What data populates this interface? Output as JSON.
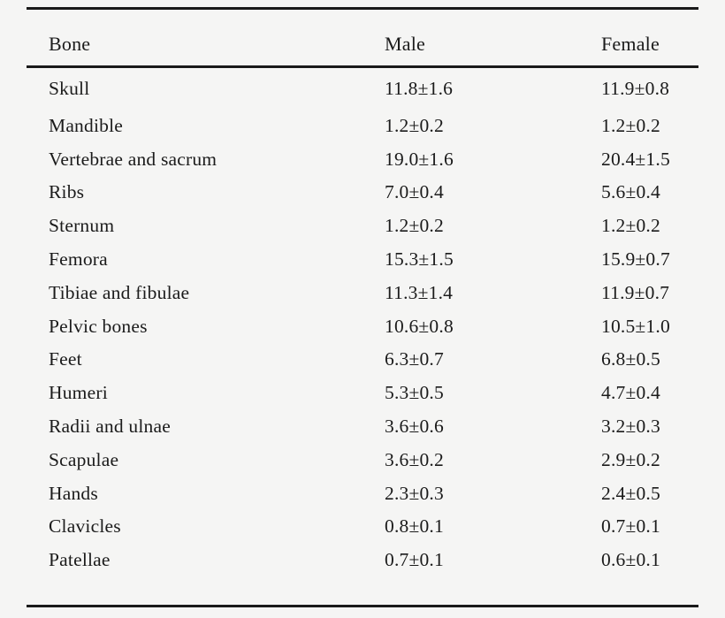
{
  "table": {
    "columns": [
      "Bone",
      "Male",
      "Female"
    ],
    "rows": [
      {
        "bone": "Skull",
        "male": "11.8±1.6",
        "female": "11.9±0.8"
      },
      {
        "bone": "Mandible",
        "male": "1.2±0.2",
        "female": "1.2±0.2"
      },
      {
        "bone": "Vertebrae and sacrum",
        "male": "19.0±1.6",
        "female": "20.4±1.5"
      },
      {
        "bone": "Ribs",
        "male": "7.0±0.4",
        "female": "5.6±0.4"
      },
      {
        "bone": "Sternum",
        "male": "1.2±0.2",
        "female": "1.2±0.2"
      },
      {
        "bone": "Femora",
        "male": "15.3±1.5",
        "female": "15.9±0.7"
      },
      {
        "bone": "Tibiae and fibulae",
        "male": "11.3±1.4",
        "female": "11.9±0.7"
      },
      {
        "bone": "Pelvic bones",
        "male": "10.6±0.8",
        "female": "10.5±1.0"
      },
      {
        "bone": "Feet",
        "male": "6.3±0.7",
        "female": "6.8±0.5"
      },
      {
        "bone": "Humeri",
        "male": "5.3±0.5",
        "female": "4.7±0.4"
      },
      {
        "bone": "Radii and ulnae",
        "male": "3.6±0.6",
        "female": "3.2±0.3"
      },
      {
        "bone": "Scapulae",
        "male": "3.6±0.2",
        "female": "2.9±0.2"
      },
      {
        "bone": "Hands",
        "male": "2.3±0.3",
        "female": "2.4±0.5"
      },
      {
        "bone": "Clavicles",
        "male": "0.8±0.1",
        "female": "0.7±0.1"
      },
      {
        "bone": "Patellae",
        "male": "0.7±0.1",
        "female": "0.6±0.1"
      }
    ]
  },
  "colors": {
    "background": "#f5f5f4",
    "text": "#1b1b1b",
    "rule": "#1a1a1a"
  }
}
